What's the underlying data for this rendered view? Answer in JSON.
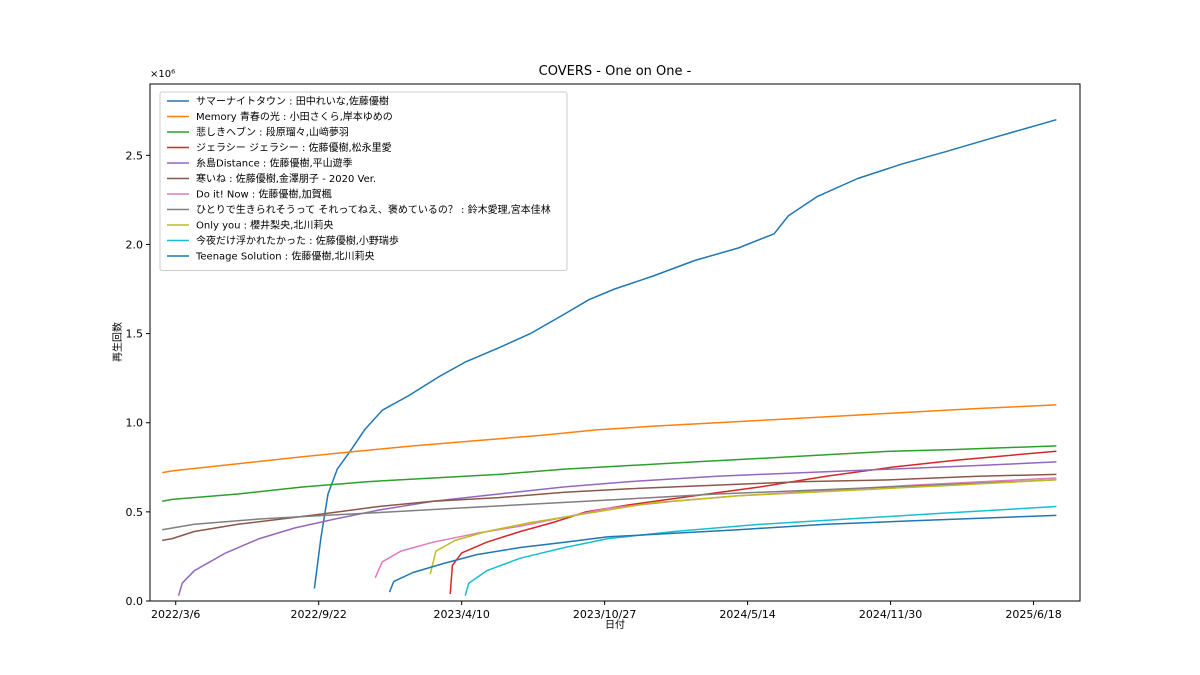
{
  "chart_data": {
    "type": "line",
    "title": "COVERS - One on One -",
    "xlabel": "日付",
    "ylabel": "再生回数",
    "y_multiplier": "×10⁶",
    "xlim": [
      "2022-01-29",
      "2025-08-22"
    ],
    "ylim": [
      0,
      2.9
    ],
    "x_ticks": [
      {
        "date": "2022-03-06",
        "label": "2022/3/6"
      },
      {
        "date": "2022-09-22",
        "label": "2022/9/22"
      },
      {
        "date": "2023-04-10",
        "label": "2023/4/10"
      },
      {
        "date": "2023-10-27",
        "label": "2023/10/27"
      },
      {
        "date": "2024-05-14",
        "label": "2024/5/14"
      },
      {
        "date": "2024-11-30",
        "label": "2024/11/30"
      },
      {
        "date": "2025-06-18",
        "label": "2025/6/18"
      }
    ],
    "y_ticks": [
      {
        "value": 0.0,
        "label": "0.0"
      },
      {
        "value": 0.5,
        "label": "0.5"
      },
      {
        "value": 1.0,
        "label": "1.0"
      },
      {
        "value": 1.5,
        "label": "1.5"
      },
      {
        "value": 2.0,
        "label": "2.0"
      },
      {
        "value": 2.5,
        "label": "2.5"
      }
    ],
    "grid": false,
    "legend_position": "top-left",
    "series": [
      {
        "name": "サマーナイトタウン : 田中れいな,佐藤優樹",
        "color": "#1f77b4",
        "points": [
          [
            "2022-09-16",
            0.07
          ],
          [
            "2022-09-25",
            0.35
          ],
          [
            "2022-10-05",
            0.6
          ],
          [
            "2022-10-18",
            0.74
          ],
          [
            "2022-11-05",
            0.84
          ],
          [
            "2022-11-25",
            0.96
          ],
          [
            "2022-12-20",
            1.07
          ],
          [
            "2023-01-25",
            1.15
          ],
          [
            "2023-03-10",
            1.26
          ],
          [
            "2023-04-15",
            1.34
          ],
          [
            "2023-06-01",
            1.42
          ],
          [
            "2023-07-15",
            1.5
          ],
          [
            "2023-09-01",
            1.61
          ],
          [
            "2023-10-05",
            1.69
          ],
          [
            "2023-11-10",
            1.75
          ],
          [
            "2024-01-01",
            1.82
          ],
          [
            "2024-03-01",
            1.91
          ],
          [
            "2024-05-01",
            1.98
          ],
          [
            "2024-06-20",
            2.06
          ],
          [
            "2024-07-10",
            2.16
          ],
          [
            "2024-08-20",
            2.27
          ],
          [
            "2024-10-15",
            2.37
          ],
          [
            "2024-12-15",
            2.45
          ],
          [
            "2025-02-15",
            2.52
          ],
          [
            "2025-04-15",
            2.59
          ],
          [
            "2025-07-20",
            2.7
          ]
        ]
      },
      {
        "name": "Memory 青春の光 : 小田さくら,岸本ゆめの",
        "color": "#ff7f0e",
        "points": [
          [
            "2022-02-15",
            0.72
          ],
          [
            "2022-03-01",
            0.73
          ],
          [
            "2022-06-01",
            0.77
          ],
          [
            "2022-09-01",
            0.81
          ],
          [
            "2022-11-15",
            0.84
          ],
          [
            "2023-02-01",
            0.87
          ],
          [
            "2023-05-01",
            0.9
          ],
          [
            "2023-08-01",
            0.93
          ],
          [
            "2023-10-15",
            0.96
          ],
          [
            "2024-01-01",
            0.98
          ],
          [
            "2024-04-01",
            1.0
          ],
          [
            "2024-07-01",
            1.02
          ],
          [
            "2024-10-01",
            1.04
          ],
          [
            "2025-01-01",
            1.06
          ],
          [
            "2025-04-01",
            1.08
          ],
          [
            "2025-07-20",
            1.1
          ]
        ]
      },
      {
        "name": "悲しきヘブン : 段原瑠々,山﨑夢羽",
        "color": "#2ca02c",
        "points": [
          [
            "2022-02-15",
            0.56
          ],
          [
            "2022-03-01",
            0.57
          ],
          [
            "2022-06-01",
            0.6
          ],
          [
            "2022-09-01",
            0.64
          ],
          [
            "2022-12-01",
            0.67
          ],
          [
            "2023-03-01",
            0.69
          ],
          [
            "2023-06-01",
            0.71
          ],
          [
            "2023-09-01",
            0.74
          ],
          [
            "2023-12-01",
            0.76
          ],
          [
            "2024-03-01",
            0.78
          ],
          [
            "2024-06-01",
            0.8
          ],
          [
            "2024-09-01",
            0.82
          ],
          [
            "2024-12-01",
            0.84
          ],
          [
            "2025-03-01",
            0.85
          ],
          [
            "2025-07-20",
            0.87
          ]
        ]
      },
      {
        "name": "ジェラシー ジェラシー : 佐藤優樹,松永里愛",
        "color": "#d62728",
        "points": [
          [
            "2023-03-25",
            0.04
          ],
          [
            "2023-03-28",
            0.2
          ],
          [
            "2023-04-10",
            0.27
          ],
          [
            "2023-05-15",
            0.33
          ],
          [
            "2023-07-01",
            0.39
          ],
          [
            "2023-08-15",
            0.44
          ],
          [
            "2023-10-01",
            0.5
          ],
          [
            "2023-12-01",
            0.54
          ],
          [
            "2024-03-01",
            0.59
          ],
          [
            "2024-06-01",
            0.64
          ],
          [
            "2024-09-01",
            0.7
          ],
          [
            "2024-12-01",
            0.75
          ],
          [
            "2025-03-01",
            0.79
          ],
          [
            "2025-07-20",
            0.84
          ]
        ]
      },
      {
        "name": "糸島Distance : 佐藤優樹,平山遊季",
        "color": "#9467bd",
        "points": [
          [
            "2022-03-10",
            0.03
          ],
          [
            "2022-03-15",
            0.1
          ],
          [
            "2022-04-01",
            0.17
          ],
          [
            "2022-05-15",
            0.27
          ],
          [
            "2022-07-01",
            0.35
          ],
          [
            "2022-08-20",
            0.41
          ],
          [
            "2022-10-15",
            0.46
          ],
          [
            "2022-12-15",
            0.51
          ],
          [
            "2023-03-01",
            0.56
          ],
          [
            "2023-06-01",
            0.6
          ],
          [
            "2023-09-01",
            0.64
          ],
          [
            "2023-12-01",
            0.67
          ],
          [
            "2024-04-01",
            0.7
          ],
          [
            "2024-08-01",
            0.72
          ],
          [
            "2024-12-01",
            0.74
          ],
          [
            "2025-04-01",
            0.76
          ],
          [
            "2025-07-20",
            0.78
          ]
        ]
      },
      {
        "name": "寒いね : 佐藤優樹,金澤朋子 - 2020 Ver.",
        "color": "#8c564b",
        "points": [
          [
            "2022-02-15",
            0.34
          ],
          [
            "2022-03-01",
            0.35
          ],
          [
            "2022-04-01",
            0.39
          ],
          [
            "2022-06-01",
            0.43
          ],
          [
            "2022-08-01",
            0.46
          ],
          [
            "2022-10-01",
            0.49
          ],
          [
            "2022-12-15",
            0.53
          ],
          [
            "2023-03-01",
            0.56
          ],
          [
            "2023-06-01",
            0.58
          ],
          [
            "2023-09-01",
            0.61
          ],
          [
            "2023-12-01",
            0.63
          ],
          [
            "2024-04-01",
            0.65
          ],
          [
            "2024-08-01",
            0.67
          ],
          [
            "2024-12-01",
            0.68
          ],
          [
            "2025-04-01",
            0.7
          ],
          [
            "2025-07-20",
            0.71
          ]
        ]
      },
      {
        "name": "Do it! Now : 佐藤優樹,加賀楓",
        "color": "#e377c2",
        "points": [
          [
            "2022-12-10",
            0.13
          ],
          [
            "2022-12-20",
            0.22
          ],
          [
            "2023-01-15",
            0.28
          ],
          [
            "2023-03-01",
            0.33
          ],
          [
            "2023-05-01",
            0.38
          ],
          [
            "2023-07-01",
            0.42
          ],
          [
            "2023-09-01",
            0.47
          ],
          [
            "2023-11-01",
            0.52
          ],
          [
            "2024-02-01",
            0.56
          ],
          [
            "2024-05-01",
            0.59
          ],
          [
            "2024-09-01",
            0.62
          ],
          [
            "2025-01-01",
            0.65
          ],
          [
            "2025-07-20",
            0.69
          ]
        ]
      },
      {
        "name": "ひとりで生きられそうって それってねえ、褒めているの？ : 鈴木愛理,宮本佳林",
        "color": "#7f7f7f",
        "points": [
          [
            "2022-02-15",
            0.4
          ],
          [
            "2022-04-01",
            0.43
          ],
          [
            "2022-07-01",
            0.46
          ],
          [
            "2022-10-01",
            0.48
          ],
          [
            "2023-01-01",
            0.5
          ],
          [
            "2023-04-01",
            0.52
          ],
          [
            "2023-07-01",
            0.54
          ],
          [
            "2023-10-01",
            0.56
          ],
          [
            "2024-01-01",
            0.58
          ],
          [
            "2024-04-01",
            0.6
          ],
          [
            "2024-08-01",
            0.62
          ],
          [
            "2024-12-01",
            0.64
          ],
          [
            "2025-04-01",
            0.66
          ],
          [
            "2025-07-20",
            0.68
          ]
        ]
      },
      {
        "name": "Only you : 櫻井梨央,北川莉央",
        "color": "#bcbd22",
        "points": [
          [
            "2023-02-25",
            0.15
          ],
          [
            "2023-03-05",
            0.28
          ],
          [
            "2023-04-01",
            0.34
          ],
          [
            "2023-05-15",
            0.39
          ],
          [
            "2023-07-15",
            0.44
          ],
          [
            "2023-10-01",
            0.49
          ],
          [
            "2024-01-01",
            0.55
          ],
          [
            "2024-05-01",
            0.59
          ],
          [
            "2024-10-01",
            0.62
          ],
          [
            "2025-03-01",
            0.65
          ],
          [
            "2025-07-20",
            0.68
          ]
        ]
      },
      {
        "name": "今夜だけ浮かれたかった : 佐藤優樹,小野瑞歩",
        "color": "#17becf",
        "points": [
          [
            "2023-04-15",
            0.03
          ],
          [
            "2023-04-20",
            0.1
          ],
          [
            "2023-05-15",
            0.17
          ],
          [
            "2023-07-01",
            0.24
          ],
          [
            "2023-09-01",
            0.3
          ],
          [
            "2023-11-01",
            0.35
          ],
          [
            "2024-02-01",
            0.39
          ],
          [
            "2024-06-01",
            0.43
          ],
          [
            "2024-10-01",
            0.46
          ],
          [
            "2025-02-01",
            0.49
          ],
          [
            "2025-07-20",
            0.53
          ]
        ]
      },
      {
        "name": "Teenage Solution : 佐藤優樹,北川莉央",
        "color": "#1f77b4",
        "points": [
          [
            "2022-12-30",
            0.05
          ],
          [
            "2023-01-05",
            0.11
          ],
          [
            "2023-02-01",
            0.16
          ],
          [
            "2023-03-15",
            0.21
          ],
          [
            "2023-05-01",
            0.26
          ],
          [
            "2023-07-01",
            0.3
          ],
          [
            "2023-09-01",
            0.33
          ],
          [
            "2023-11-01",
            0.36
          ],
          [
            "2024-02-01",
            0.38
          ],
          [
            "2024-05-01",
            0.4
          ],
          [
            "2024-09-01",
            0.43
          ],
          [
            "2025-01-01",
            0.45
          ],
          [
            "2025-07-20",
            0.48
          ]
        ]
      }
    ]
  }
}
